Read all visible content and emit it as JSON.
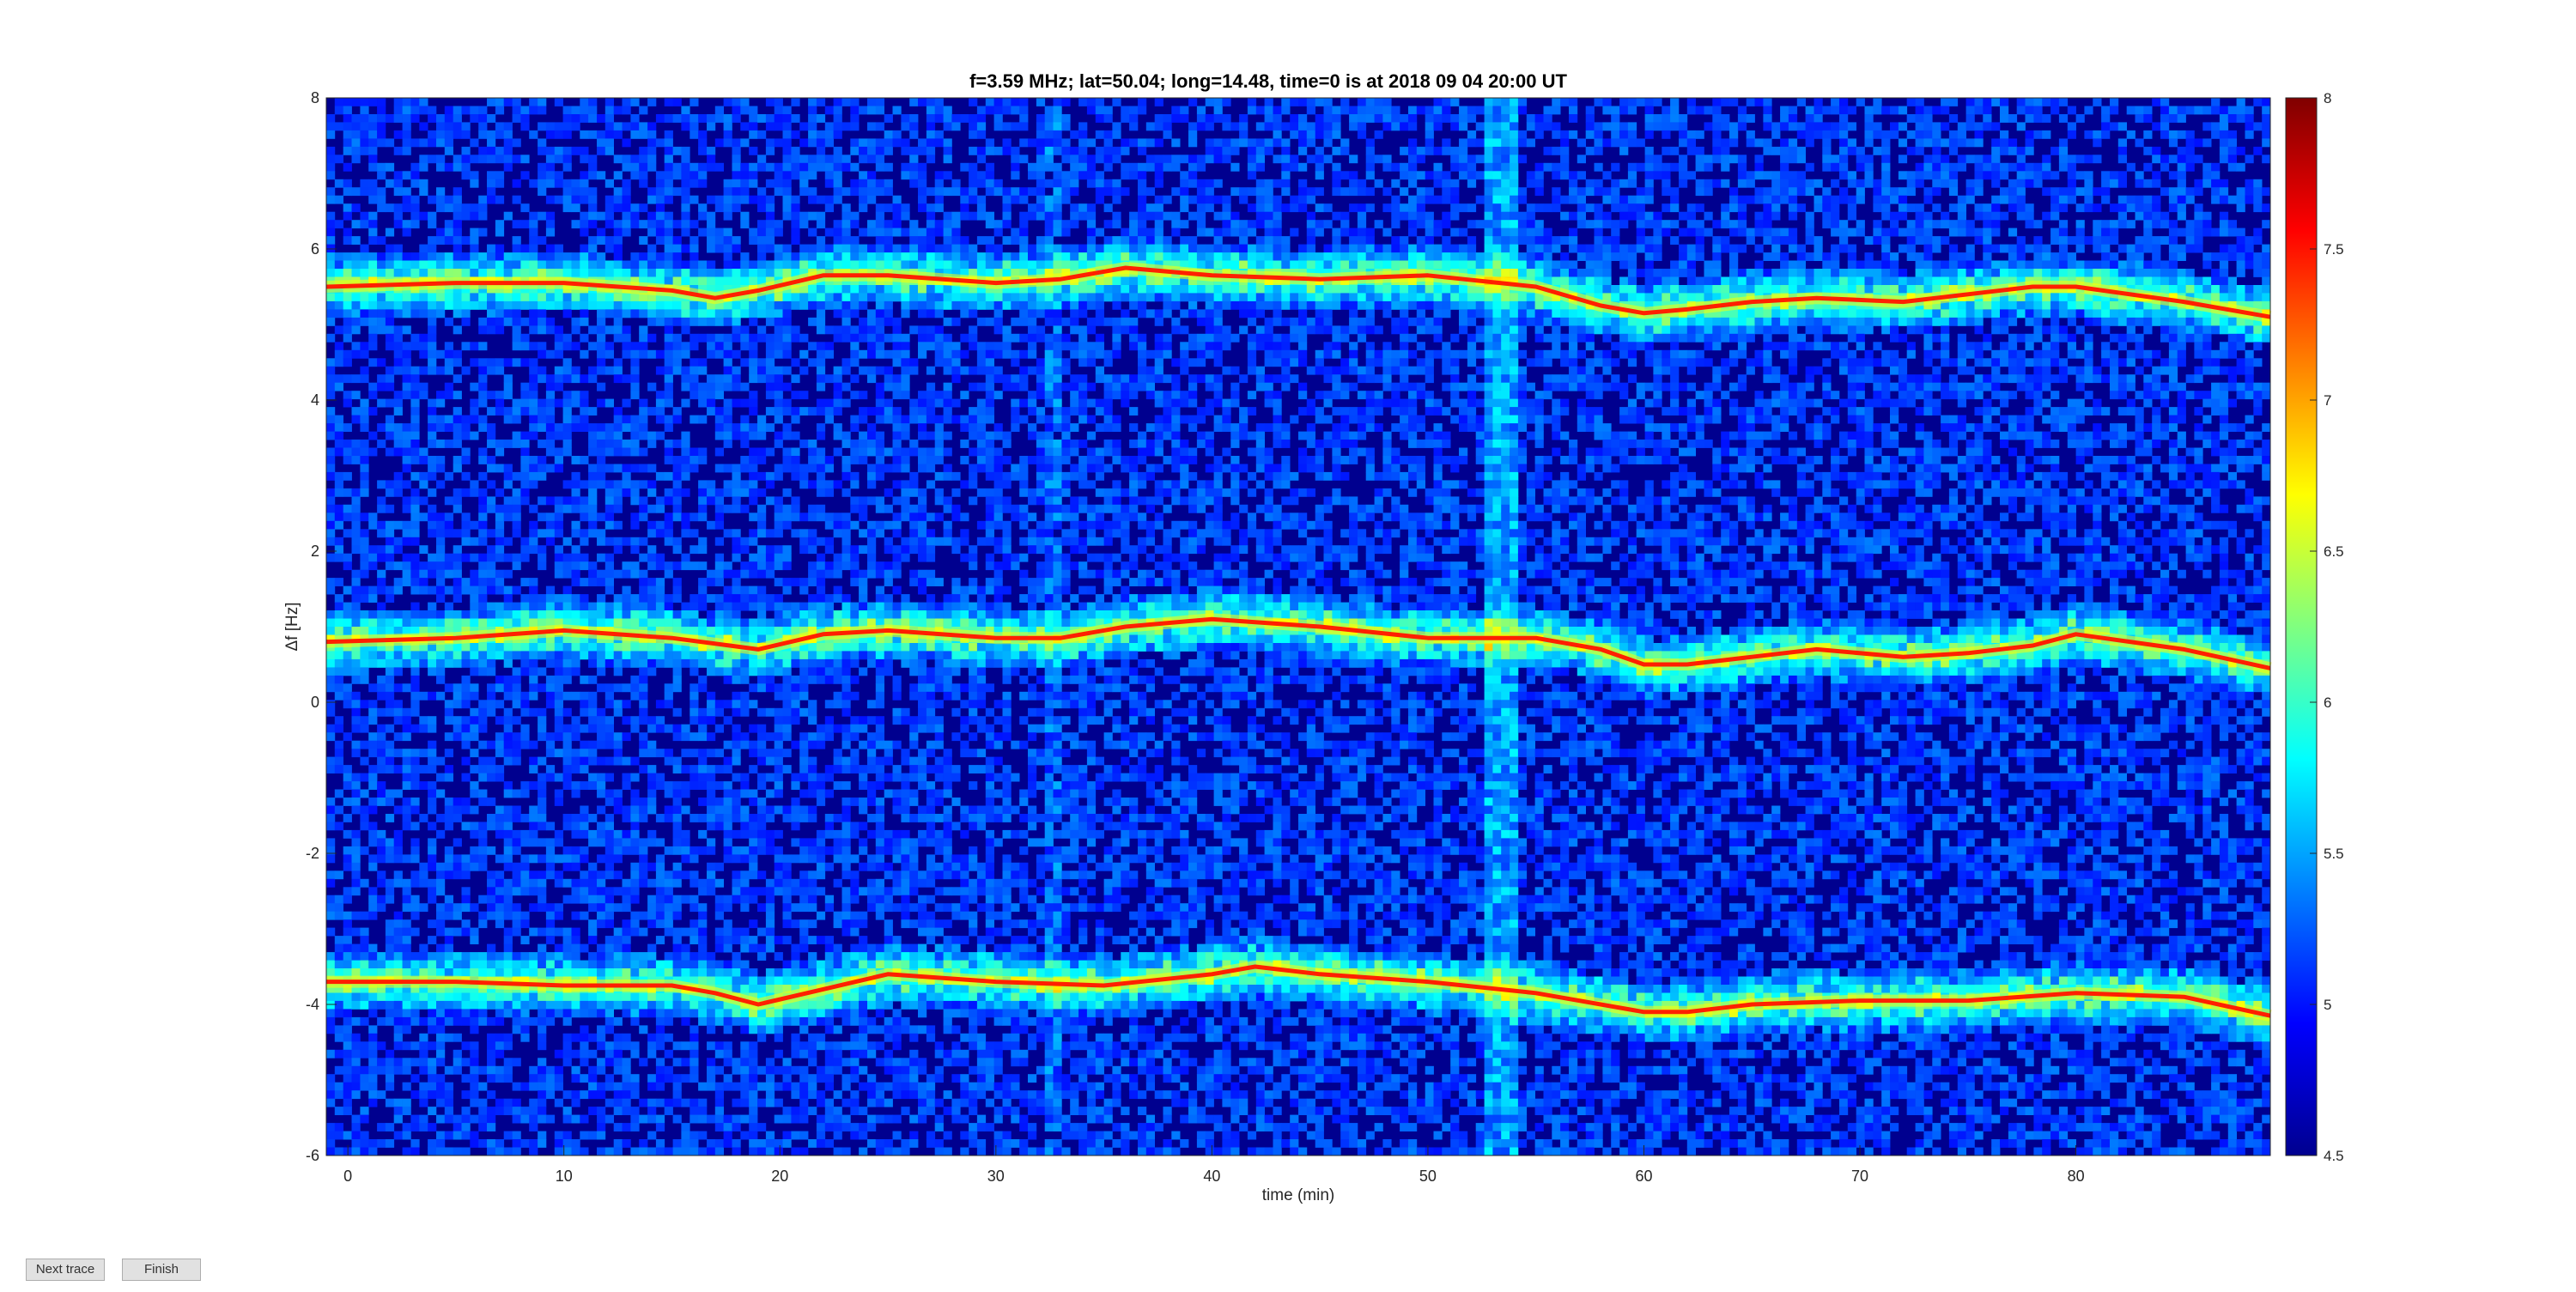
{
  "window": {
    "buttons": {
      "next_trace": "Next trace",
      "finish": "Finish"
    }
  },
  "chart_data": {
    "type": "heatmap",
    "title": "f=3.59 MHz;  lat=50.04; long=14.48, time=0 is at 2018 09 04 20:00 UT",
    "xlabel": "time (min)",
    "ylabel": "Δf [Hz]",
    "xlim": [
      -1,
      89
    ],
    "ylim": [
      -6,
      8
    ],
    "xticks": [
      0,
      10,
      20,
      30,
      40,
      50,
      60,
      70,
      80
    ],
    "yticks": [
      -6,
      -4,
      -2,
      0,
      2,
      4,
      6,
      8
    ],
    "colorbar": {
      "colormap": "jet",
      "clim": [
        4.5,
        8
      ],
      "ticks": [
        4.5,
        5,
        5.5,
        6,
        6.5,
        7,
        7.5,
        8
      ],
      "tick_labels": [
        "4.5",
        "5",
        "5.5",
        "6",
        "6.5",
        "7",
        "7.5",
        "8"
      ]
    },
    "grid": false,
    "traces": [
      {
        "x": [
          -1,
          5,
          10,
          15,
          17,
          19,
          22,
          25,
          30,
          33,
          36,
          40,
          45,
          50,
          55,
          58,
          60,
          62,
          65,
          68,
          72,
          75,
          78,
          80,
          85,
          89
        ],
        "y": [
          5.5,
          5.55,
          5.55,
          5.45,
          5.35,
          5.45,
          5.65,
          5.65,
          5.55,
          5.6,
          5.75,
          5.65,
          5.6,
          5.65,
          5.5,
          5.25,
          5.15,
          5.2,
          5.3,
          5.35,
          5.3,
          5.4,
          5.5,
          5.5,
          5.3,
          5.1
        ]
      },
      {
        "x": [
          -1,
          5,
          10,
          15,
          19,
          22,
          25,
          30,
          33,
          36,
          40,
          45,
          50,
          55,
          58,
          60,
          62,
          65,
          68,
          72,
          75,
          78,
          80,
          85,
          89
        ],
        "y": [
          0.8,
          0.85,
          0.95,
          0.85,
          0.7,
          0.9,
          0.95,
          0.85,
          0.85,
          1.0,
          1.1,
          1.0,
          0.85,
          0.85,
          0.7,
          0.5,
          0.5,
          0.6,
          0.7,
          0.6,
          0.65,
          0.75,
          0.9,
          0.7,
          0.45
        ]
      },
      {
        "x": [
          -1,
          5,
          10,
          15,
          17,
          19,
          22,
          25,
          30,
          35,
          40,
          42,
          45,
          50,
          55,
          60,
          62,
          65,
          70,
          75,
          80,
          85,
          89
        ],
        "y": [
          -3.7,
          -3.7,
          -3.75,
          -3.75,
          -3.85,
          -4.0,
          -3.8,
          -3.6,
          -3.7,
          -3.75,
          -3.6,
          -3.5,
          -3.6,
          -3.7,
          -3.85,
          -4.1,
          -4.1,
          -4.0,
          -3.95,
          -3.95,
          -3.85,
          -3.9,
          -4.15
        ]
      }
    ]
  }
}
